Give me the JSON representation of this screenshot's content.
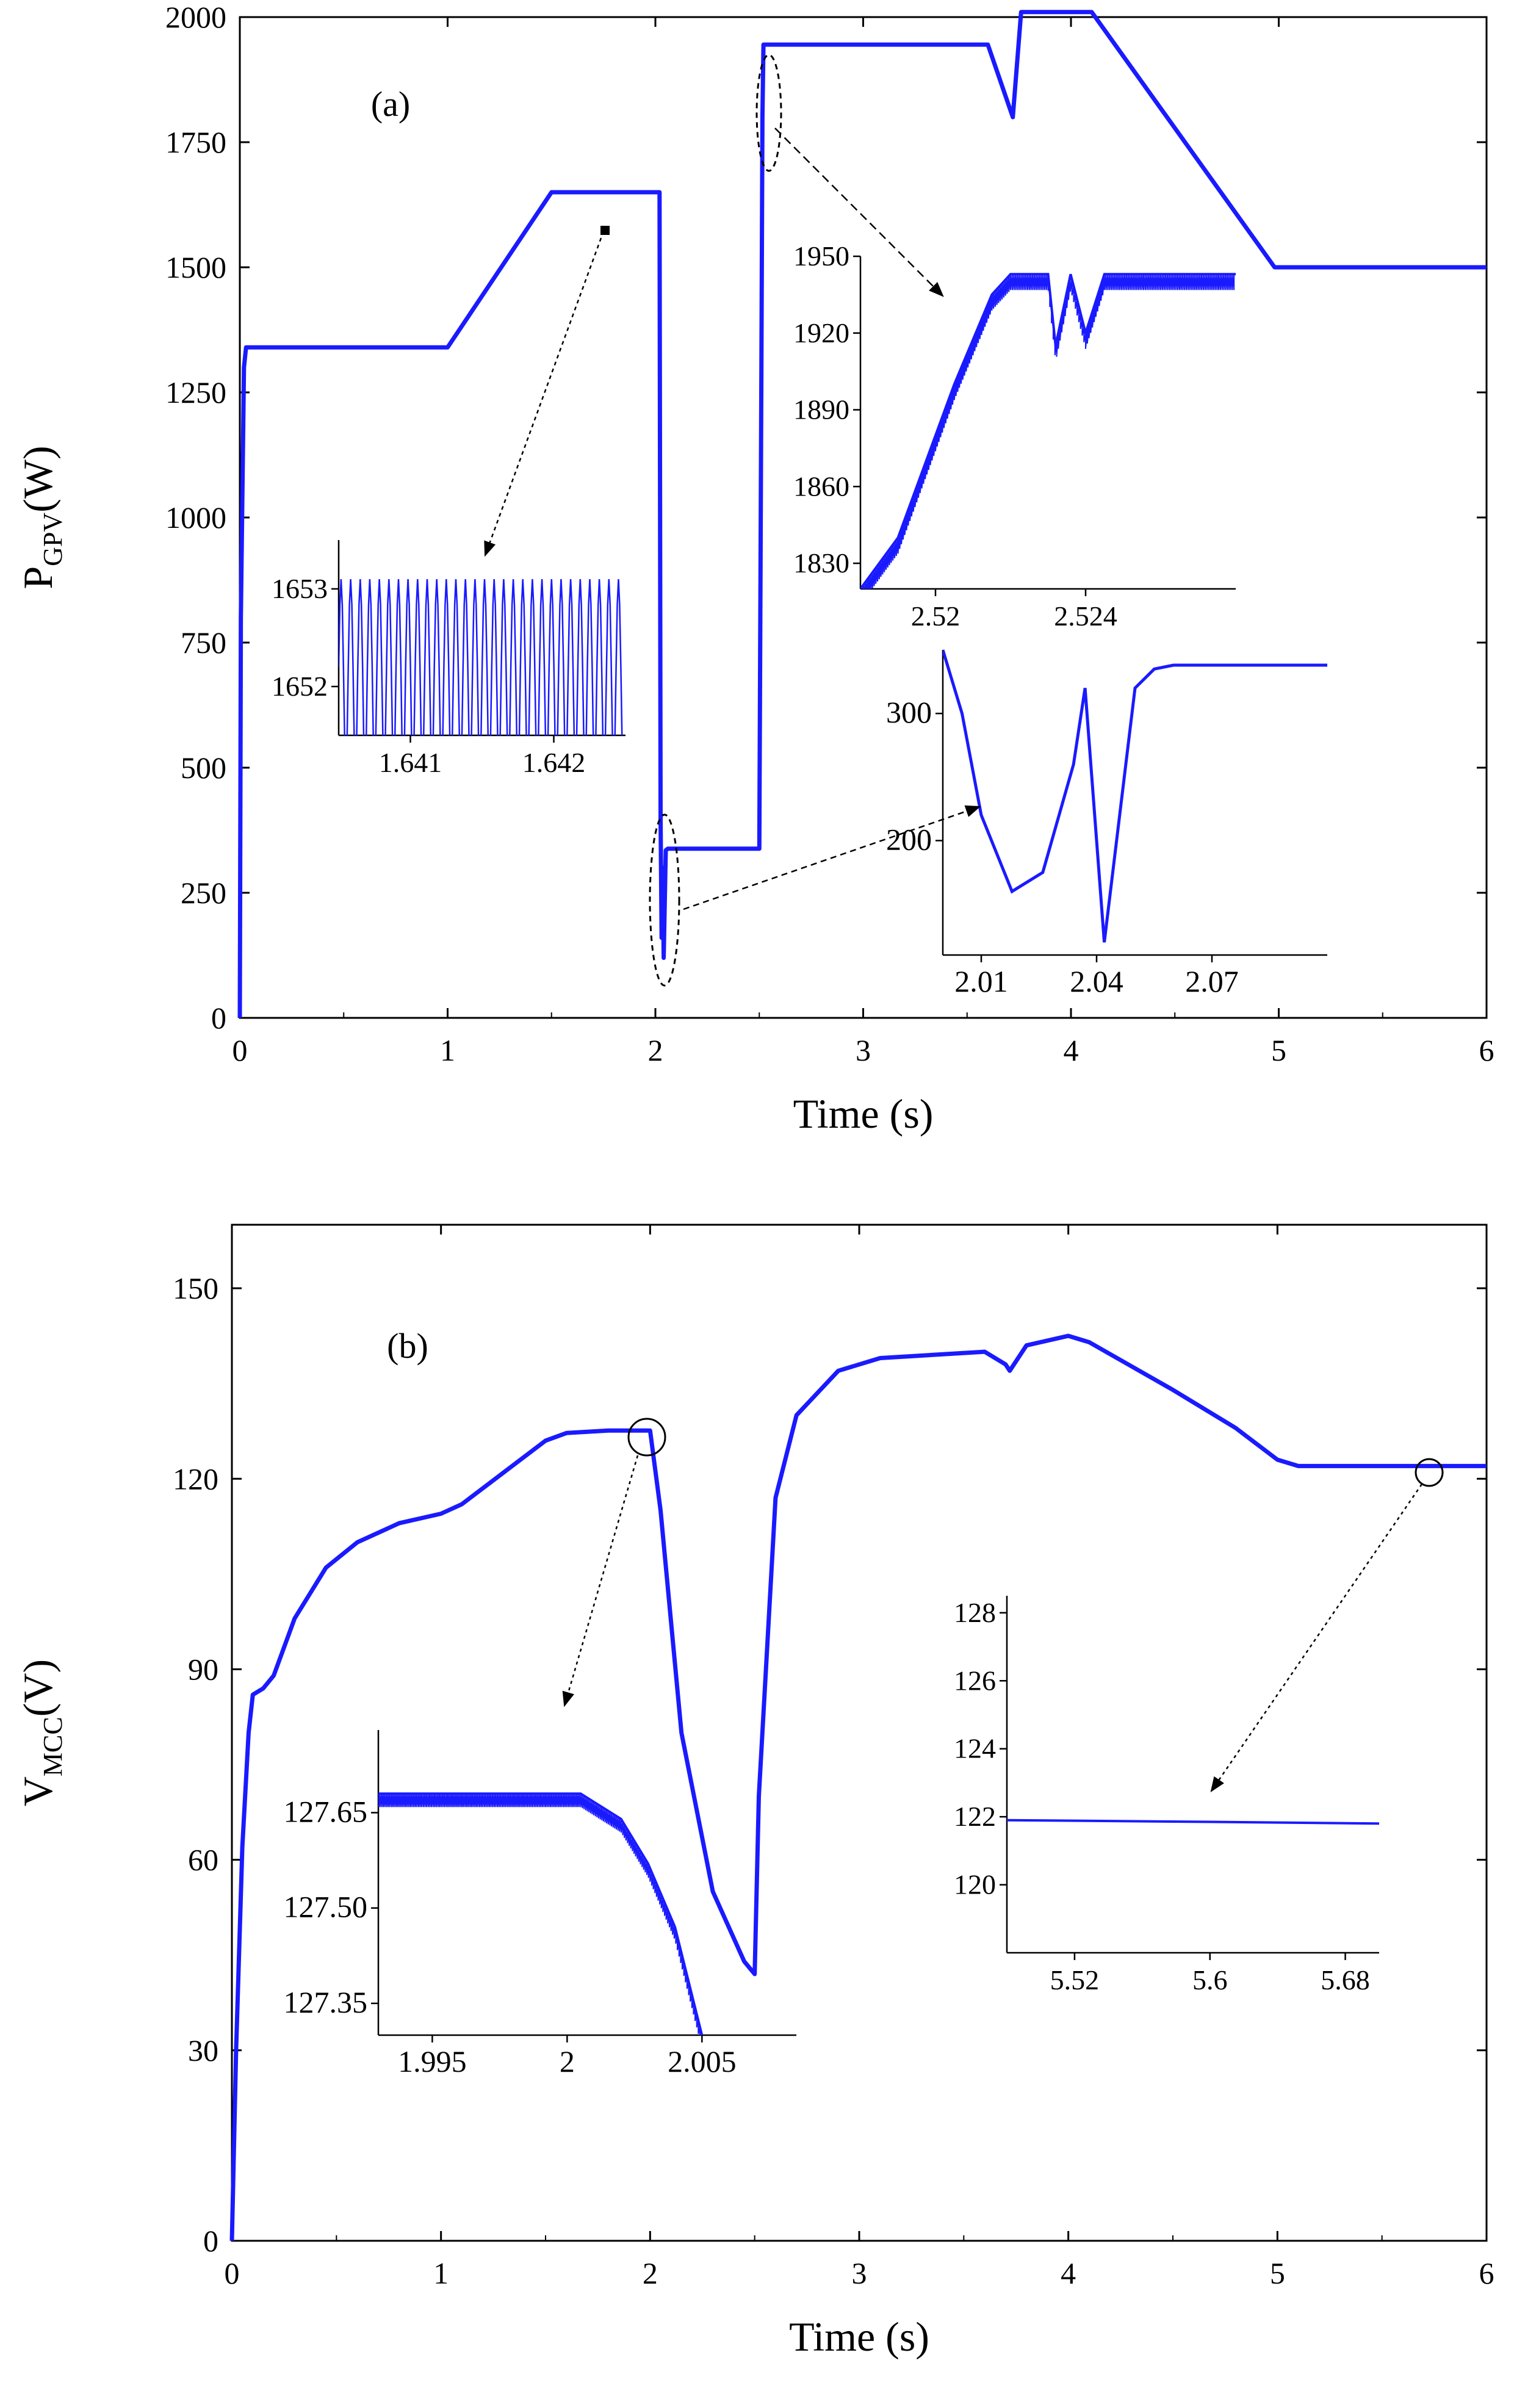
{
  "chart_data": [
    {
      "type": "line",
      "panel_label": "(a)",
      "title": "",
      "xlabel": "Time (s)",
      "ylabel_main": "P",
      "ylabel_sub": "GPV",
      "ylabel_unit": "(W)",
      "xlim": [
        0,
        6
      ],
      "ylim": [
        0,
        2000
      ],
      "xticks": [
        0,
        1,
        2,
        3,
        4,
        5,
        6
      ],
      "yticks": [
        0,
        250,
        500,
        750,
        1000,
        1250,
        1500,
        1750,
        2000
      ],
      "series_color": "#1a1aff",
      "series": [
        {
          "name": "P_GPV",
          "x": [
            0.0,
            0.005,
            0.02,
            0.03,
            0.05,
            1.0,
            1.5,
            1.6,
            2.0,
            2.02,
            2.025,
            2.03,
            2.035,
            2.04,
            2.05,
            2.06,
            2.07,
            2.1,
            2.5,
            2.51,
            2.515,
            2.52,
            2.53,
            3.6,
            3.72,
            3.76,
            4.0,
            4.1,
            4.98,
            5.0,
            6.0
          ],
          "y": [
            0,
            800,
            1300,
            1340,
            1340,
            1340,
            1650,
            1650,
            1650,
            1650,
            400,
            160,
            300,
            120,
            335,
            338,
            338,
            338,
            338,
            1300,
            1800,
            1945,
            1945,
            1945,
            1800,
            2010,
            2010,
            2010,
            1500,
            1500,
            1500
          ]
        }
      ],
      "insets": [
        {
          "name": "inset-1p64",
          "x_range": [
            1.6405,
            1.6425
          ],
          "xticks": [
            1.641,
            1.642
          ],
          "yticks": [
            1652,
            1653
          ],
          "y_range": [
            1651.5,
            1653.5
          ],
          "signal": {
            "base": 1652.2,
            "amp": 0.9,
            "period": 6.67e-05
          }
        },
        {
          "name": "inset-2p52",
          "x_range": [
            2.518,
            2.528
          ],
          "xticks": [
            2.52,
            2.524
          ],
          "yticks": [
            1830,
            1860,
            1890,
            1920,
            1950
          ],
          "y_range": [
            1820,
            1950
          ],
          "x": [
            2.518,
            2.519,
            2.5205,
            2.5215,
            2.522,
            2.523,
            2.5232,
            2.5236,
            2.524,
            2.5245,
            2.528
          ],
          "y": [
            1820,
            1840,
            1900,
            1935,
            1943,
            1943,
            1915,
            1943,
            1920,
            1943,
            1943
          ]
        },
        {
          "name": "inset-2p0",
          "x_range": [
            2.0,
            2.1
          ],
          "xticks": [
            2.01,
            2.04,
            2.07
          ],
          "yticks": [
            200,
            300
          ],
          "y_range": [
            110,
            350
          ],
          "x": [
            2.0,
            2.005,
            2.01,
            2.018,
            2.026,
            2.034,
            2.037,
            2.042,
            2.046,
            2.05,
            2.055,
            2.06,
            2.07,
            2.1
          ],
          "y": [
            350,
            300,
            220,
            160,
            175,
            260,
            320,
            120,
            220,
            320,
            335,
            338,
            338,
            338
          ]
        }
      ]
    },
    {
      "type": "line",
      "panel_label": "(b)",
      "title": "",
      "xlabel": "Time (s)",
      "ylabel_main": "V",
      "ylabel_sub": "MCC",
      "ylabel_unit": "(V)",
      "xlim": [
        0,
        6
      ],
      "ylim": [
        0,
        160
      ],
      "xticks": [
        0,
        1,
        2,
        3,
        4,
        5,
        6
      ],
      "yticks": [
        0,
        30,
        60,
        90,
        120,
        150
      ],
      "series_color": "#1a1aff",
      "series": [
        {
          "name": "V_MCC",
          "x": [
            0.0,
            0.02,
            0.05,
            0.08,
            0.1,
            0.15,
            0.2,
            0.3,
            0.45,
            0.6,
            0.8,
            1.0,
            1.1,
            1.3,
            1.5,
            1.6,
            1.8,
            2.0,
            2.05,
            2.15,
            2.3,
            2.45,
            2.5,
            2.52,
            2.6,
            2.7,
            2.9,
            3.1,
            3.6,
            3.7,
            3.72,
            3.8,
            4.0,
            4.1,
            4.5,
            4.8,
            5.0,
            5.1,
            6.0
          ],
          "y": [
            0,
            30,
            62,
            80,
            86,
            87,
            89,
            98,
            106,
            110,
            113,
            114.5,
            116,
            121,
            126,
            127.2,
            127.6,
            127.6,
            115,
            80,
            55,
            44,
            42,
            70,
            117,
            130,
            137,
            139,
            140,
            138,
            137,
            141,
            142.5,
            141.5,
            134,
            128,
            123,
            122,
            122
          ]
        }
      ],
      "insets": [
        {
          "name": "inset-2p000",
          "x_range": [
            1.993,
            2.0085
          ],
          "xticks": [
            1.995,
            2.0,
            2.005
          ],
          "yticks": [
            "127.35",
            "127.50",
            "127.65"
          ],
          "y_range": [
            127.3,
            127.78
          ],
          "x": [
            1.993,
            2.0005,
            2.002,
            2.003,
            2.004,
            2.005
          ],
          "y": [
            127.68,
            127.68,
            127.64,
            127.57,
            127.47,
            127.3
          ]
        },
        {
          "name": "inset-5p6",
          "x_range": [
            5.48,
            5.7
          ],
          "xticks": [
            5.52,
            5.6,
            5.68
          ],
          "yticks": [
            120,
            122,
            124,
            126,
            128
          ],
          "y_range": [
            118,
            128.5
          ],
          "x": [
            5.48,
            5.6,
            5.7
          ],
          "y": [
            121.9,
            121.85,
            121.8
          ]
        }
      ]
    }
  ]
}
